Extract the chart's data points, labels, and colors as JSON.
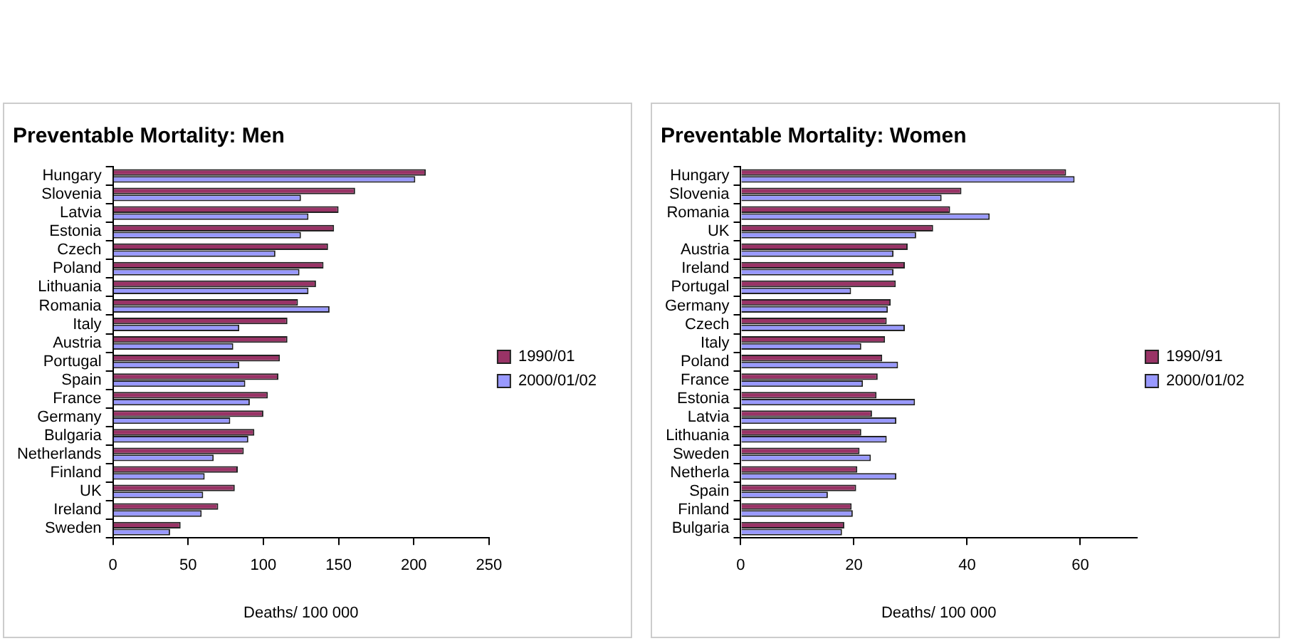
{
  "chart_data": [
    {
      "type": "bar",
      "orientation": "horizontal",
      "title": "Preventable Mortality: Men",
      "xlabel": "Deaths/ 100 000",
      "categories": [
        "Hungary",
        "Slovenia",
        "Latvia",
        "Estonia",
        "Czech",
        "Poland",
        "Lithuania",
        "Romania",
        "Italy",
        "Austria",
        "Portugal",
        "Spain",
        "France",
        "Germany",
        "Bulgaria",
        "Netherlands",
        "Finland",
        "UK",
        "Ireland",
        "Sweden"
      ],
      "series": [
        {
          "name": "1990/01",
          "color": "#993366",
          "values": [
            208,
            161,
            150,
            147,
            143,
            140,
            135,
            123,
            116,
            116,
            111,
            110,
            103,
            100,
            94,
            87,
            83,
            81,
            70,
            45
          ]
        },
        {
          "name": "2000/01/02",
          "color": "#9999ff",
          "values": [
            201,
            125,
            130,
            125,
            108,
            124,
            130,
            144,
            84,
            80,
            84,
            88,
            91,
            78,
            90,
            67,
            61,
            60,
            59,
            38
          ]
        }
      ],
      "xlim": [
        0,
        250
      ],
      "xticks": [
        0,
        50,
        100,
        150,
        200,
        250
      ],
      "grid": false,
      "legend": "right"
    },
    {
      "type": "bar",
      "orientation": "horizontal",
      "title": "Preventable Mortality: Women",
      "xlabel": "Deaths/ 100 000",
      "categories": [
        "Hungary",
        "Slovenia",
        "Romania",
        "UK",
        "Austria",
        "Ireland",
        "Portugal",
        "Germany",
        "Czech",
        "Italy",
        "Poland",
        "France",
        "Estonia",
        "Latvia",
        "Lithuania",
        "Sweden",
        "Netherla",
        "Spain",
        "Finland",
        "Bulgaria"
      ],
      "series": [
        {
          "name": "1990/91",
          "color": "#993366",
          "values": [
            57.5,
            39,
            37,
            34,
            29.5,
            29,
            27.4,
            26.5,
            25.8,
            25.5,
            25,
            24.2,
            24,
            23.2,
            21.3,
            21,
            20.6,
            20.4,
            19.6,
            18.3
          ]
        },
        {
          "name": "2000/01/02",
          "color": "#9999ff",
          "values": [
            59,
            35.5,
            44,
            31,
            27,
            27,
            19.5,
            26,
            29,
            21.3,
            27.8,
            21.6,
            30.8,
            27.5,
            25.8,
            23,
            27.5,
            15.4,
            19.8,
            17.9
          ]
        }
      ],
      "xlim": [
        0,
        70
      ],
      "xticks": [
        0,
        20,
        40,
        60
      ],
      "grid": false,
      "legend": "right"
    }
  ]
}
